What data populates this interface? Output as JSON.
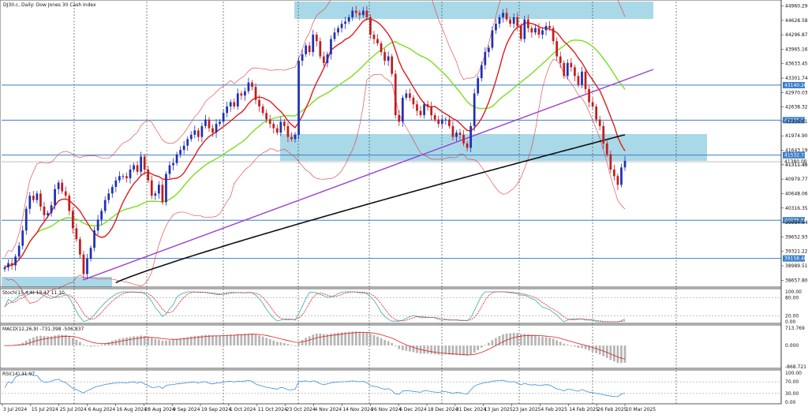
{
  "header": {
    "symbol_title": "DJ30.c, Daily: Dow Jones 30 Cash Index"
  },
  "colors": {
    "zone": "#a9d8e8",
    "hline": "#3a7ec9",
    "trend": "#9b3fd1",
    "ma_red": "#e01b1b",
    "ma_green": "#78e01b",
    "ma_black": "#111111",
    "bands": "#e23a3a",
    "bull": "#1f2fb4",
    "bear": "#c21d1d"
  },
  "chart_data": [
    {
      "type": "candlestick",
      "title": "DJ30.c, Daily: Dow Jones 30 Cash Index",
      "x_labels": [
        "3 Jul 2024",
        "15 Jul 2024",
        "25 Jul 2024",
        "6 Aug 2024",
        "16 Aug 2024",
        "28 Aug 2024",
        "9 Sep 2024",
        "19 Sep 2024",
        "1 Oct 2024",
        "11 Oct 2024",
        "23 Oct 2024",
        "4 Nov 2024",
        "14 Nov 2024",
        "26 Nov 2024",
        "6 Dec 2024",
        "18 Dec 2024",
        "31 Dec 2024",
        "13 Jan 2025",
        "23 Jan 2025",
        "4 Feb 2025",
        "14 Feb 2025",
        "26 Feb 2025",
        "10 Mar 2025"
      ],
      "y_ticks": [
        "44960.29",
        "44628.58",
        "44296.87",
        "43965.16",
        "43633.45",
        "43301.74",
        "42970.03",
        "42638.32",
        "42306.61",
        "41974.90",
        "41643.19",
        "41311.48",
        "40979.77",
        "40648.06",
        "40316.35",
        "39984.64",
        "39652.93",
        "39321.22",
        "38989.51",
        "38657.80"
      ],
      "ylim": [
        38500,
        45060
      ],
      "horizontal_levels": [
        {
          "value": 43140.26,
          "label": "43140.26"
        },
        {
          "value": 42335.12,
          "label": "42335.12"
        },
        {
          "value": 41532.73,
          "label": "41532.73"
        },
        {
          "value": 40035.5,
          "label": "40035.50"
        },
        {
          "value": 39158.4,
          "label": "39158.40"
        }
      ],
      "current_price": {
        "value": 41380.0,
        "label": "41380.00"
      },
      "ohlc_close": [
        38950,
        39050,
        39000,
        39200,
        39450,
        39800,
        40300,
        40600,
        40500,
        40650,
        40350,
        40150,
        40200,
        40380,
        40750,
        40900,
        40700,
        40600,
        40250,
        39850,
        39600,
        39250,
        38800,
        39150,
        39400,
        39800,
        40050,
        40250,
        40500,
        40650,
        40800,
        40950,
        41050,
        41050,
        41000,
        41200,
        41300,
        41150,
        41500,
        41200,
        40950,
        40600,
        40650,
        40850,
        40450,
        41100,
        41300,
        41350,
        41550,
        41650,
        41750,
        41900,
        42000,
        42100,
        41950,
        42200,
        42350,
        42150,
        42050,
        42250,
        42300,
        42500,
        42650,
        42750,
        42650,
        42950,
        42900,
        43000,
        43200,
        43100,
        42800,
        42650,
        42500,
        42350,
        42250,
        42150,
        42050,
        42300,
        42200,
        41950,
        41900,
        42000,
        43700,
        43850,
        44050,
        43900,
        44300,
        44150,
        43800,
        43650,
        43850,
        44200,
        44350,
        44450,
        44550,
        44600,
        44700,
        44850,
        44800,
        44750,
        44850,
        44700,
        44300,
        44200,
        44100,
        43900,
        43700,
        43800,
        43400,
        42450,
        42300,
        42850,
        42950,
        42850,
        42700,
        42550,
        42450,
        42700,
        42650,
        42450,
        42350,
        42250,
        42350,
        42350,
        42200,
        41950,
        42050,
        42000,
        41800,
        41700,
        42200,
        42950,
        43300,
        43600,
        43900,
        44000,
        44400,
        44550,
        44700,
        44800,
        44650,
        44550,
        44700,
        44500,
        44200,
        44650,
        44450,
        44350,
        44450,
        44300,
        44400,
        44500,
        44450,
        44150,
        43800,
        43650,
        43350,
        43650,
        43550,
        43350,
        43150,
        43450,
        43050,
        42750,
        42650,
        42350,
        42200,
        41800,
        41550,
        41200,
        41050,
        40850,
        41250,
        41400
      ],
      "ma_red_end": 42600,
      "ma_green_end": 43450,
      "ma_black_end": 42000,
      "panels": [
        {
          "name": "Stoch(15,4,4)",
          "header": "Stoch(15,4,4) 13.47 11.10",
          "values": [
            "13.47",
            "11.10"
          ],
          "y_ticks": [
            "100.00",
            "80.00",
            "20.00",
            "0.00"
          ],
          "ylim": [
            0,
            100
          ]
        },
        {
          "name": "MACD(12,26,9)",
          "header": "MACD(12,26,9) -731.398 -506.837",
          "values": [
            "-731.398",
            "-506.837"
          ],
          "y_ticks": [
            "713.769",
            "0.000",
            "-868.721"
          ],
          "ylim": [
            -868.721,
            713.769
          ]
        },
        {
          "name": "RSI(14)",
          "header": "RSI(14) 31.97",
          "values": [
            "31.97"
          ],
          "y_ticks": [
            "100.00",
            "70.00",
            "30.00",
            "0.00"
          ],
          "ylim": [
            0,
            100
          ]
        }
      ]
    }
  ]
}
